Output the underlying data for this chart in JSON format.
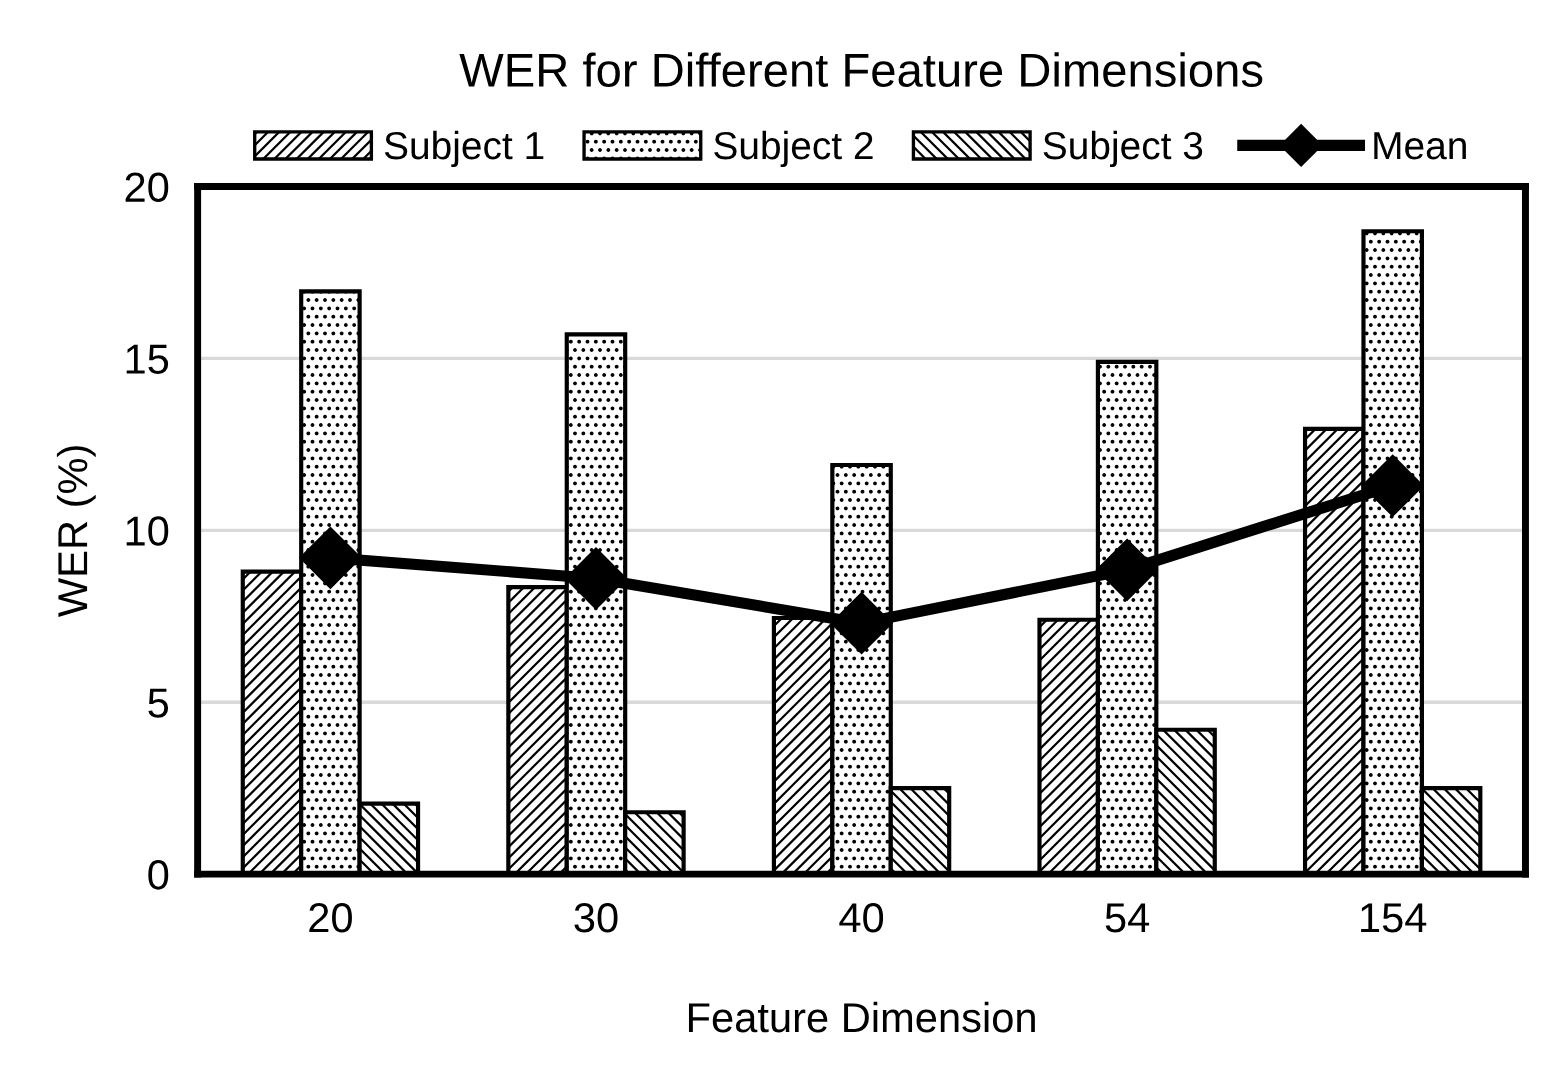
{
  "chart_data": {
    "type": "bar",
    "title": "WER for Different Feature Dimensions",
    "xlabel": "Feature Dimension",
    "ylabel": "WER (%)",
    "categories": [
      "20",
      "30",
      "40",
      "54",
      "154"
    ],
    "series": [
      {
        "name": "Subject 1",
        "color": "#000000",
        "values": [
          8.8,
          8.35,
          7.45,
          7.4,
          12.95
        ]
      },
      {
        "name": "Subject 2",
        "color": "#000000",
        "values": [
          16.95,
          15.7,
          11.9,
          14.9,
          18.7
        ]
      },
      {
        "name": "Subject 3",
        "color": "#000000",
        "values": [
          2.05,
          1.8,
          2.5,
          4.2,
          2.5
        ]
      },
      {
        "name": "Mean",
        "type": "line",
        "color": "#000000",
        "marker": "diamond",
        "values": [
          9.2,
          8.6,
          7.3,
          8.85,
          11.3
        ]
      }
    ],
    "ylim": [
      0,
      20
    ],
    "yticks": [
      0,
      5,
      10,
      15,
      20
    ],
    "grid": "y",
    "legend": "top"
  }
}
